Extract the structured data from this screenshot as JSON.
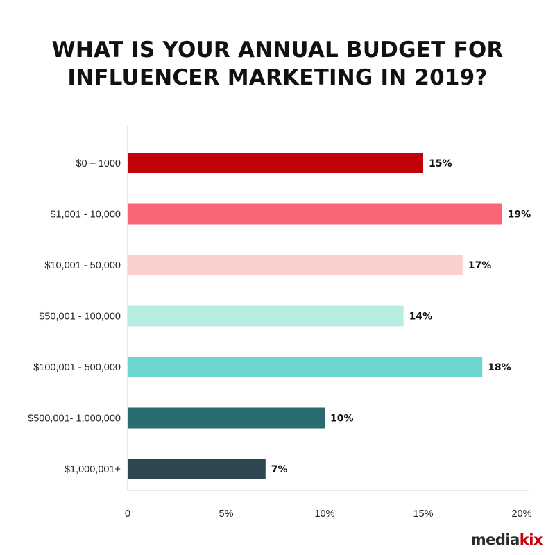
{
  "title": {
    "line1": "WHAT IS YOUR ANNUAL BUDGET FOR",
    "line2": "INFLUENCER MARKETING IN 2019?"
  },
  "logo": {
    "part1": "media",
    "part2": "kix",
    "colors": {
      "media": "#2b2b2b",
      "kix": "#c0020a"
    }
  },
  "chart_data": {
    "type": "bar",
    "orientation": "horizontal",
    "title": "WHAT IS YOUR ANNUAL BUDGET FOR INFLUENCER MARKETING IN 2019?",
    "categories": [
      "$0 – 1000",
      "$1,001 - 10,000",
      "$10,001 - 50,000",
      "$50,001 - 100,000",
      "$100,001 - 500,000",
      "$500,001- 1,000,000",
      "$1,000,001+"
    ],
    "values": [
      15,
      19,
      17,
      14,
      18,
      10,
      7
    ],
    "value_labels": [
      "15%",
      "19%",
      "17%",
      "14%",
      "18%",
      "10%",
      "7%"
    ],
    "colors": [
      "#c0020a",
      "#fa6675",
      "#fbcfcd",
      "#b8ede2",
      "#6dd5d0",
      "#2a6b70",
      "#2e4650"
    ],
    "xlim": [
      0,
      20
    ],
    "xticks": [
      0,
      5,
      10,
      15,
      20
    ],
    "xtick_labels": [
      "0",
      "5%",
      "10%",
      "15%",
      "20%"
    ],
    "xlabel": "",
    "ylabel": "",
    "grid": false,
    "legend": "none"
  }
}
